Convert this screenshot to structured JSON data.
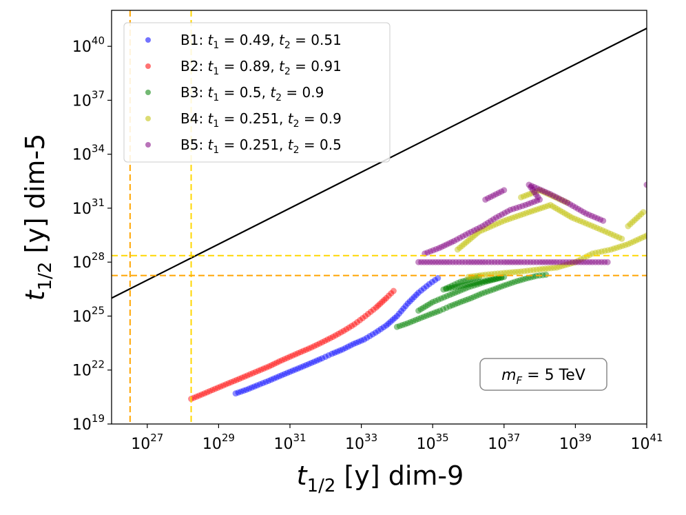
{
  "chart_data": {
    "type": "scatter",
    "x_scale": "log",
    "y_scale": "log",
    "xlim": [
      1e+26,
      1e+41
    ],
    "ylim": [
      1e+19,
      1e+42
    ],
    "xlabel": "t_{1/2} [y] dim-9",
    "ylabel": "t_{1/2} [y] dim-5",
    "xlabel_parts": {
      "main": "t",
      "sub": "1/2",
      "rest": " [y] dim-9"
    },
    "ylabel_parts": {
      "main": "t",
      "sub": "1/2",
      "rest": " [y] dim-5"
    },
    "x_ticks": [
      {
        "base": "10",
        "exp": "27",
        "value": 1e+27
      },
      {
        "base": "10",
        "exp": "29",
        "value": 1e+29
      },
      {
        "base": "10",
        "exp": "31",
        "value": 1e+31
      },
      {
        "base": "10",
        "exp": "33",
        "value": 1e+33
      },
      {
        "base": "10",
        "exp": "35",
        "value": 1e+35
      },
      {
        "base": "10",
        "exp": "37",
        "value": 1e+37
      },
      {
        "base": "10",
        "exp": "39",
        "value": 1e+39
      },
      {
        "base": "10",
        "exp": "41",
        "value": 1e+41
      }
    ],
    "y_ticks": [
      {
        "base": "10",
        "exp": "19",
        "value": 1e+19
      },
      {
        "base": "10",
        "exp": "22",
        "value": 1e+22
      },
      {
        "base": "10",
        "exp": "25",
        "value": 1e+25
      },
      {
        "base": "10",
        "exp": "28",
        "value": 1e+28
      },
      {
        "base": "10",
        "exp": "31",
        "value": 1e+31
      },
      {
        "base": "10",
        "exp": "34",
        "value": 1e+34
      },
      {
        "base": "10",
        "exp": "37",
        "value": 1e+37
      },
      {
        "base": "10",
        "exp": "40",
        "value": 1e+40
      }
    ],
    "reference_lines": [
      {
        "kind": "diagonal",
        "color": "#000000",
        "points": [
          [
            1e+26,
            1e+26
          ],
          [
            1e+41,
            1e+41
          ]
        ]
      },
      {
        "kind": "vertical",
        "x": 3.3e+26,
        "color": "#ffa500",
        "style": "dashed"
      },
      {
        "kind": "vertical",
        "x": 1.7e+28,
        "color": "#ffd700",
        "style": "dashed"
      },
      {
        "kind": "horizontal",
        "y": 1.8e+27,
        "color": "#ffa500",
        "style": "dashed"
      },
      {
        "kind": "horizontal",
        "y": 2.3e+28,
        "color": "#ffd700",
        "style": "dashed"
      }
    ],
    "series": [
      {
        "name": "B1",
        "t1": "0.49",
        "t2": "0.51",
        "color": "#0000ff",
        "points": [
          [
            3e+29,
            5e+20
          ],
          [
            6e+29,
            8e+20
          ],
          [
            1.2e+30,
            1.4e+21
          ],
          [
            2.5e+30,
            2.5e+21
          ],
          [
            5e+30,
            4.5e+21
          ],
          [
            1e+31,
            8e+21
          ],
          [
            2e+31,
            1.4e+22
          ],
          [
            4e+31,
            2.5e+22
          ],
          [
            8e+31,
            4.5e+22
          ],
          [
            1.5e+32,
            8e+22
          ],
          [
            3e+32,
            1.4e+23
          ],
          [
            6e+32,
            2.8e+23
          ],
          [
            1.2e+33,
            5e+23
          ],
          [
            2.5e+33,
            1.2e+24
          ],
          [
            5e+33,
            3e+24
          ],
          [
            1e+34,
            1e+25
          ],
          [
            2e+34,
            5e+25
          ],
          [
            4e+34,
            2e+26
          ],
          [
            8e+34,
            6e+26
          ],
          [
            1.4e+35,
            1.3e+27
          ]
        ]
      },
      {
        "name": "B2",
        "t1": "0.89",
        "t2": "0.91",
        "color": "#ff0000",
        "points": [
          [
            1.7e+28,
            2.5e+20
          ],
          [
            4e+28,
            5e+20
          ],
          [
            8e+28,
            9e+20
          ],
          [
            1.6e+29,
            1.6e+21
          ],
          [
            3.2e+29,
            2.8e+21
          ],
          [
            6.4e+29,
            5e+21
          ],
          [
            1.3e+30,
            9e+21
          ],
          [
            2.6e+30,
            1.6e+22
          ],
          [
            5e+30,
            3e+22
          ],
          [
            1e+31,
            5.5e+22
          ],
          [
            2e+31,
            1e+23
          ],
          [
            4e+31,
            1.8e+23
          ],
          [
            8e+31,
            3.5e+23
          ],
          [
            1.6e+32,
            7e+23
          ],
          [
            3.2e+32,
            1.5e+24
          ],
          [
            6.4e+32,
            3.5e+24
          ],
          [
            1.3e+33,
            1e+25
          ],
          [
            2.6e+33,
            3e+25
          ],
          [
            5e+33,
            1e+26
          ],
          [
            8e+33,
            2.5e+26
          ]
        ]
      },
      {
        "name": "B3",
        "t1": "0.5",
        "t2": "0.9",
        "color": "#008000",
        "points": [
          [
            1e+34,
            2.5e+24
          ],
          [
            2e+34,
            4e+24
          ],
          [
            4e+34,
            7e+24
          ],
          [
            8e+34,
            1.2e+25
          ],
          [
            1.6e+35,
            2e+25
          ],
          [
            3e+35,
            3.5e+25
          ],
          [
            6e+35,
            6e+25
          ],
          [
            1.2e+36,
            1e+26
          ],
          [
            2.4e+36,
            1.8e+26
          ],
          [
            5e+36,
            3e+26
          ],
          [
            1e+37,
            5e+26
          ],
          [
            2e+37,
            8e+26
          ],
          [
            4e+37,
            1.2e+27
          ],
          [
            8e+37,
            1.7e+27
          ],
          [
            1.5e+38,
            2e+27
          ],
          [
            4e+34,
            2e+25
          ],
          [
            1e+35,
            6e+25
          ],
          [
            3e+35,
            1.5e+26
          ],
          [
            1e+36,
            4e+26
          ],
          [
            3e+36,
            8e+26
          ],
          [
            1e+37,
            1.5e+27
          ],
          [
            2e+35,
            3e+26
          ],
          [
            6e+35,
            8e+26
          ],
          [
            2e+36,
            1.5e+27
          ]
        ]
      },
      {
        "name": "B4",
        "t1": "0.251",
        "t2": "0.9",
        "color": "#bfbf00",
        "points": [
          [
            1e+36,
            1.5e+27
          ],
          [
            3e+36,
            2e+27
          ],
          [
            1e+37,
            2.5e+27
          ],
          [
            3e+37,
            3e+27
          ],
          [
            1e+38,
            4e+27
          ],
          [
            3e+38,
            5e+27
          ],
          [
            1e+39,
            1e+28
          ],
          [
            3e+39,
            3e+28
          ],
          [
            1e+40,
            5e+28
          ],
          [
            3e+40,
            1e+29
          ],
          [
            1e+41,
            3e+29
          ],
          [
            5e+35,
            5e+28
          ],
          [
            2e+36,
            5e+29
          ],
          [
            1e+37,
            2e+30
          ],
          [
            5e+37,
            6e+30
          ],
          [
            2e+38,
            1.5e+31
          ],
          [
            8e+38,
            3e+30
          ],
          [
            4e+39,
            8e+29
          ],
          [
            2e+40,
            2e+29
          ],
          [
            3e+37,
            4e+31
          ],
          [
            1e+38,
            1e+32
          ],
          [
            6e+38,
            2e+31
          ],
          [
            3e+40,
            1e+30
          ],
          [
            8e+40,
            6e+30
          ]
        ]
      },
      {
        "name": "B5",
        "t1": "0.251",
        "t2": "0.5",
        "color": "#800080",
        "points": [
          [
            4e+34,
            1e+28
          ],
          [
            1e+35,
            1e+28
          ],
          [
            3e+35,
            1e+28
          ],
          [
            1e+36,
            1e+28
          ],
          [
            3e+36,
            1e+28
          ],
          [
            1e+37,
            1e+28
          ],
          [
            3e+37,
            1e+28
          ],
          [
            1e+38,
            1e+28
          ],
          [
            3e+38,
            1e+28
          ],
          [
            1e+39,
            1e+28
          ],
          [
            3e+39,
            1e+28
          ],
          [
            8e+39,
            1e+28
          ],
          [
            6e+34,
            3e+28
          ],
          [
            1.5e+35,
            6e+28
          ],
          [
            4e+35,
            1.5e+29
          ],
          [
            1e+36,
            4e+29
          ],
          [
            2.5e+36,
            1e+30
          ],
          [
            6e+36,
            3e+30
          ],
          [
            1.5e+37,
            8e+30
          ],
          [
            4e+37,
            1.5e+31
          ],
          [
            1e+38,
            3e+31
          ],
          [
            5e+37,
            2e+32
          ],
          [
            2e+38,
            6e+31
          ],
          [
            6e+38,
            2e+31
          ],
          [
            2e+39,
            5e+30
          ],
          [
            6e+39,
            2e+30
          ],
          [
            1e+37,
            1e+32
          ],
          [
            3e+36,
            3e+31
          ],
          [
            1e+41,
            2e+32
          ]
        ]
      }
    ],
    "legend": {
      "placement": "upper-left",
      "entries": [
        {
          "series": "B1",
          "prefix": "B1: ",
          "t1": "0.49",
          "t2": "0.51"
        },
        {
          "series": "B2",
          "prefix": "B2: ",
          "t1": "0.89",
          "t2": "0.91"
        },
        {
          "series": "B3",
          "prefix": "B3: ",
          "t1": "0.5",
          "t2": "0.9"
        },
        {
          "series": "B4",
          "prefix": "B4: ",
          "t1": "0.251",
          "t2": "0.9"
        },
        {
          "series": "B5",
          "prefix": "B5: ",
          "t1": "0.251",
          "t2": "0.5"
        }
      ]
    },
    "annotation": {
      "text": "m_F = 5 TeV",
      "var": "m",
      "sub": "F",
      "rest": " = 5 TeV",
      "placement": "lower-right"
    },
    "grid": false
  }
}
